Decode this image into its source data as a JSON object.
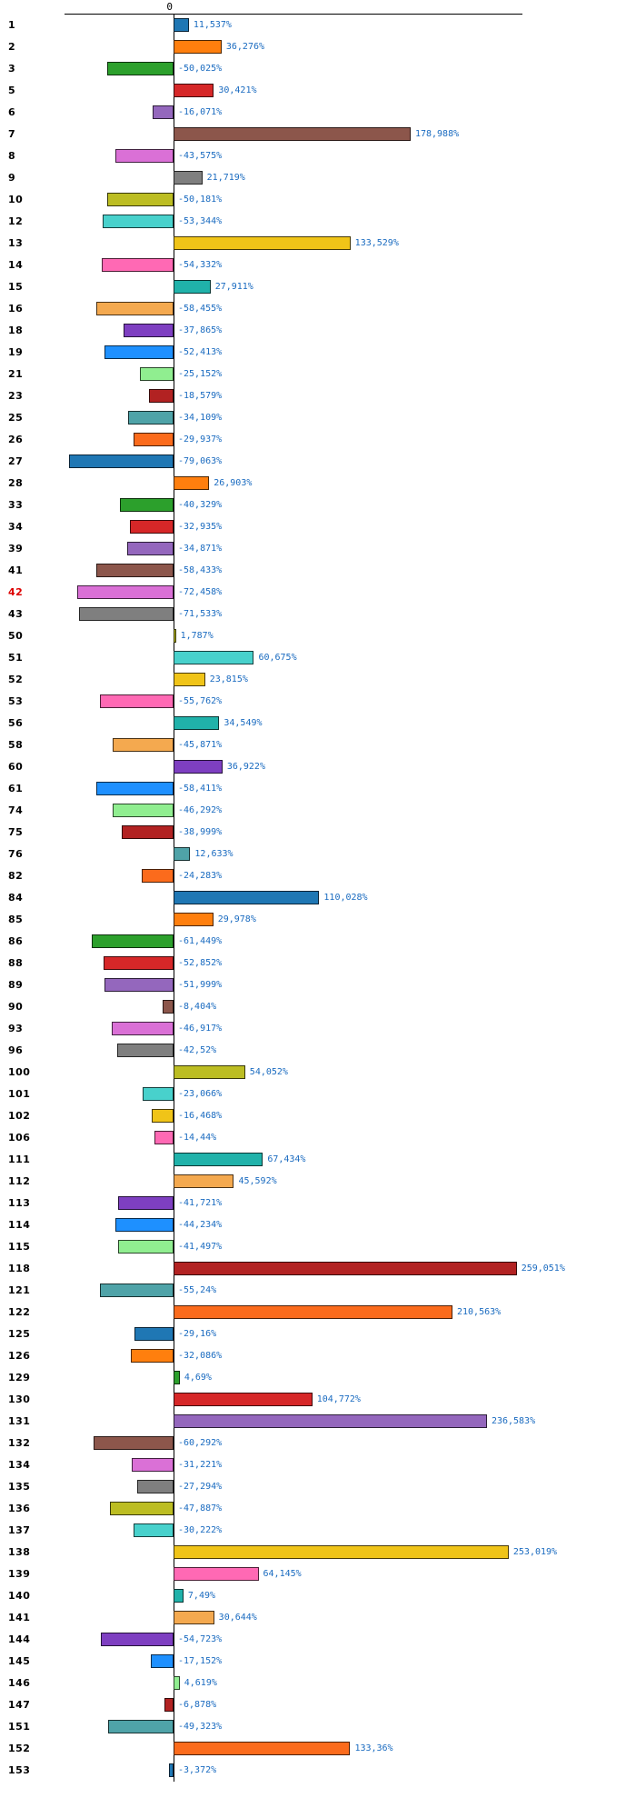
{
  "chart_data": {
    "type": "bar",
    "orientation": "horizontal",
    "title": "",
    "unit": "%",
    "axis": {
      "zero_label": "0",
      "xlim": [
        -82,
        264
      ],
      "grid": false,
      "zero_line": true,
      "top_line": true
    },
    "palette": [
      "#1F77B4",
      "#FF7F0E",
      "#2CA02C",
      "#D62728",
      "#9467BD",
      "#8C564B",
      "#DA70D6",
      "#7F7F7F",
      "#BCBD22",
      "#48D1CC",
      "#F0C418",
      "#FF69B4",
      "#20B2AA",
      "#F4A94F",
      "#7E3FC1",
      "#1E90FF",
      "#90EE90",
      "#B22222",
      "#4FA3A8",
      "#FB6B1C"
    ],
    "palette_names": [
      "blue",
      "orange",
      "green",
      "red",
      "purple",
      "brown",
      "orchid",
      "gray",
      "olive",
      "turquoise",
      "gold",
      "pink",
      "teal",
      "sandy-orange",
      "violet",
      "bright-blue",
      "light-green",
      "dark-red",
      "slate-teal",
      "orange-red"
    ],
    "colors": {
      "value_label": "#1A6BC0",
      "row_label": "#000000",
      "highlight_row_label": "#DD0000",
      "axis_line": "#000000",
      "background": "#FFFFFF"
    },
    "rows": [
      {
        "label": "1",
        "value": 11.537,
        "value_text": "11,537%"
      },
      {
        "label": "2",
        "value": 36.276,
        "value_text": "36,276%"
      },
      {
        "label": "3",
        "value": -50.025,
        "value_text": "-50,025%"
      },
      {
        "label": "5",
        "value": 30.421,
        "value_text": "30,421%"
      },
      {
        "label": "6",
        "value": -16.071,
        "value_text": "-16,071%"
      },
      {
        "label": "7",
        "value": 178.988,
        "value_text": "178,988%"
      },
      {
        "label": "8",
        "value": -43.575,
        "value_text": "-43,575%"
      },
      {
        "label": "9",
        "value": 21.719,
        "value_text": "21,719%"
      },
      {
        "label": "10",
        "value": -50.181,
        "value_text": "-50,181%"
      },
      {
        "label": "12",
        "value": -53.344,
        "value_text": "-53,344%"
      },
      {
        "label": "13",
        "value": 133.529,
        "value_text": "133,529%"
      },
      {
        "label": "14",
        "value": -54.332,
        "value_text": "-54,332%"
      },
      {
        "label": "15",
        "value": 27.911,
        "value_text": "27,911%"
      },
      {
        "label": "16",
        "value": -58.455,
        "value_text": "-58,455%"
      },
      {
        "label": "18",
        "value": -37.865,
        "value_text": "-37,865%"
      },
      {
        "label": "19",
        "value": -52.413,
        "value_text": "-52,413%"
      },
      {
        "label": "21",
        "value": -25.152,
        "value_text": "-25,152%"
      },
      {
        "label": "23",
        "value": -18.579,
        "value_text": "-18,579%"
      },
      {
        "label": "25",
        "value": -34.109,
        "value_text": "-34,109%"
      },
      {
        "label": "26",
        "value": -29.937,
        "value_text": "-29,937%"
      },
      {
        "label": "27",
        "value": -79.063,
        "value_text": "-79,063%"
      },
      {
        "label": "28",
        "value": 26.903,
        "value_text": "26,903%"
      },
      {
        "label": "33",
        "value": -40.329,
        "value_text": "-40,329%"
      },
      {
        "label": "34",
        "value": -32.935,
        "value_text": "-32,935%"
      },
      {
        "label": "39",
        "value": -34.871,
        "value_text": "-34,871%"
      },
      {
        "label": "41",
        "value": -58.433,
        "value_text": "-58,433%"
      },
      {
        "label": "42",
        "value": -72.458,
        "value_text": "-72,458%",
        "highlight": true
      },
      {
        "label": "43",
        "value": -71.533,
        "value_text": "-71,533%"
      },
      {
        "label": "50",
        "value": 1.787,
        "value_text": "1,787%"
      },
      {
        "label": "51",
        "value": 60.675,
        "value_text": "60,675%"
      },
      {
        "label": "52",
        "value": 23.815,
        "value_text": "23,815%"
      },
      {
        "label": "53",
        "value": -55.762,
        "value_text": "-55,762%"
      },
      {
        "label": "56",
        "value": 34.549,
        "value_text": "34,549%"
      },
      {
        "label": "58",
        "value": -45.871,
        "value_text": "-45,871%"
      },
      {
        "label": "60",
        "value": 36.922,
        "value_text": "36,922%"
      },
      {
        "label": "61",
        "value": -58.411,
        "value_text": "-58,411%"
      },
      {
        "label": "74",
        "value": -46.292,
        "value_text": "-46,292%"
      },
      {
        "label": "75",
        "value": -38.999,
        "value_text": "-38,999%"
      },
      {
        "label": "76",
        "value": 12.633,
        "value_text": "12,633%"
      },
      {
        "label": "82",
        "value": -24.283,
        "value_text": "-24,283%"
      },
      {
        "label": "84",
        "value": 110.028,
        "value_text": "110,028%"
      },
      {
        "label": "85",
        "value": 29.978,
        "value_text": "29,978%"
      },
      {
        "label": "86",
        "value": -61.449,
        "value_text": "-61,449%"
      },
      {
        "label": "88",
        "value": -52.852,
        "value_text": "-52,852%"
      },
      {
        "label": "89",
        "value": -51.999,
        "value_text": "-51,999%"
      },
      {
        "label": "90",
        "value": -8.404,
        "value_text": "-8,404%"
      },
      {
        "label": "93",
        "value": -46.917,
        "value_text": "-46,917%"
      },
      {
        "label": "96",
        "value": -42.52,
        "value_text": "-42,52%"
      },
      {
        "label": "100",
        "value": 54.052,
        "value_text": "54,052%"
      },
      {
        "label": "101",
        "value": -23.066,
        "value_text": "-23,066%"
      },
      {
        "label": "102",
        "value": -16.468,
        "value_text": "-16,468%"
      },
      {
        "label": "106",
        "value": -14.44,
        "value_text": "-14,44%"
      },
      {
        "label": "111",
        "value": 67.434,
        "value_text": "67,434%"
      },
      {
        "label": "112",
        "value": 45.592,
        "value_text": "45,592%"
      },
      {
        "label": "113",
        "value": -41.721,
        "value_text": "-41,721%"
      },
      {
        "label": "114",
        "value": -44.234,
        "value_text": "-44,234%"
      },
      {
        "label": "115",
        "value": -41.497,
        "value_text": "-41,497%"
      },
      {
        "label": "118",
        "value": 259.051,
        "value_text": "259,051%"
      },
      {
        "label": "121",
        "value": -55.24,
        "value_text": "-55,24%"
      },
      {
        "label": "122",
        "value": 210.563,
        "value_text": "210,563%"
      },
      {
        "label": "125",
        "value": -29.16,
        "value_text": "-29,16%"
      },
      {
        "label": "126",
        "value": -32.086,
        "value_text": "-32,086%"
      },
      {
        "label": "129",
        "value": 4.69,
        "value_text": "4,69%"
      },
      {
        "label": "130",
        "value": 104.772,
        "value_text": "104,772%"
      },
      {
        "label": "131",
        "value": 236.583,
        "value_text": "236,583%"
      },
      {
        "label": "132",
        "value": -60.292,
        "value_text": "-60,292%"
      },
      {
        "label": "134",
        "value": -31.221,
        "value_text": "-31,221%"
      },
      {
        "label": "135",
        "value": -27.294,
        "value_text": "-27,294%"
      },
      {
        "label": "136",
        "value": -47.887,
        "value_text": "-47,887%"
      },
      {
        "label": "137",
        "value": -30.222,
        "value_text": "-30,222%"
      },
      {
        "label": "138",
        "value": 253.019,
        "value_text": "253,019%"
      },
      {
        "label": "139",
        "value": 64.145,
        "value_text": "64,145%"
      },
      {
        "label": "140",
        "value": 7.49,
        "value_text": "7,49%"
      },
      {
        "label": "141",
        "value": 30.644,
        "value_text": "30,644%"
      },
      {
        "label": "144",
        "value": -54.723,
        "value_text": "-54,723%"
      },
      {
        "label": "145",
        "value": -17.152,
        "value_text": "-17,152%"
      },
      {
        "label": "146",
        "value": 4.619,
        "value_text": "4,619%"
      },
      {
        "label": "147",
        "value": -6.878,
        "value_text": "-6,878%"
      },
      {
        "label": "151",
        "value": -49.323,
        "value_text": "-49,323%"
      },
      {
        "label": "152",
        "value": 133.36,
        "value_text": "133,36%"
      },
      {
        "label": "153",
        "value": -3.372,
        "value_text": "-3,372%"
      }
    ]
  }
}
